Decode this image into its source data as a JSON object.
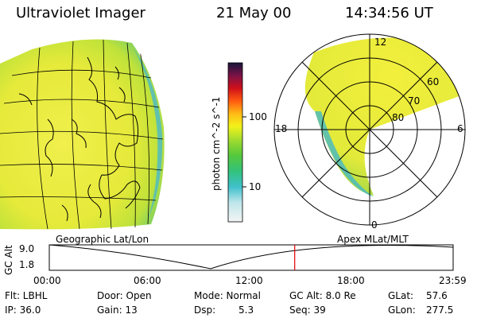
{
  "header": {
    "title": "Ultraviolet Imager",
    "date": "21 May 00",
    "time": "14:34:56 UT"
  },
  "colorbar": {
    "unit": "photon cm^-2 s^-1",
    "ticks": [
      "100",
      "10"
    ]
  },
  "polar_plot": {
    "labels": {
      "mlt_top": "12",
      "mlt_left": "18",
      "mlt_right": "6",
      "mlt_bottom": "0",
      "lat_60": "60",
      "lat_70": "70",
      "lat_80": "80"
    }
  },
  "timeline": {
    "left_caption": "Geographic Lat/Lon",
    "right_caption": "Apex MLat/MLT",
    "y_axis": "GC Alt",
    "y_top": "9.0",
    "y_bottom": "1.8",
    "x_ticks": [
      "00:00",
      "06:00",
      "12:00",
      "18:00",
      "23:59"
    ],
    "cursor_fraction": 0.6076,
    "marker_color": "#e00000"
  },
  "info": {
    "flt": "Flt: LBHL",
    "ip": "IP: 36.0",
    "door": "Door: Open",
    "gain": "Gain: 13",
    "mode": "Mode: Normal",
    "dsp": "Dsp:",
    "dsp_value": "5.3",
    "gc_alt": "GC Alt: 8.0 Re",
    "seq": "Seq: 39",
    "glat": "GLat:",
    "glat_value": "57.6",
    "glon": "GLon:",
    "glon_value": "277.5"
  }
}
